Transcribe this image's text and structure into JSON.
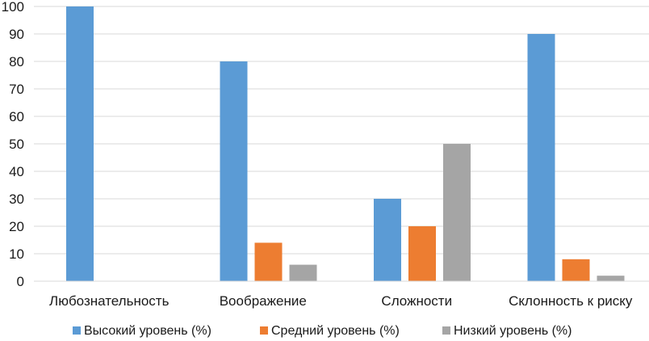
{
  "chart_data": {
    "type": "bar",
    "categories": [
      "Любознательность",
      "Воображение",
      "Сложности",
      "Склонность к риску"
    ],
    "series": [
      {
        "name": "Высокий уровень (%)",
        "color": "#5b9bd5",
        "values": [
          100,
          80,
          30,
          90
        ]
      },
      {
        "name": "Средний уровень (%)",
        "color": "#ed7d31",
        "values": [
          0,
          14,
          20,
          8
        ]
      },
      {
        "name": "Низкий уровень (%)",
        "color": "#a5a5a5",
        "values": [
          0,
          6,
          50,
          2
        ]
      }
    ],
    "ylim": [
      0,
      100
    ],
    "yticks": [
      0,
      10,
      20,
      30,
      40,
      50,
      60,
      70,
      80,
      90,
      100
    ],
    "grid": true,
    "legend_position": "bottom",
    "gridline_color": "#d9d9d9"
  }
}
